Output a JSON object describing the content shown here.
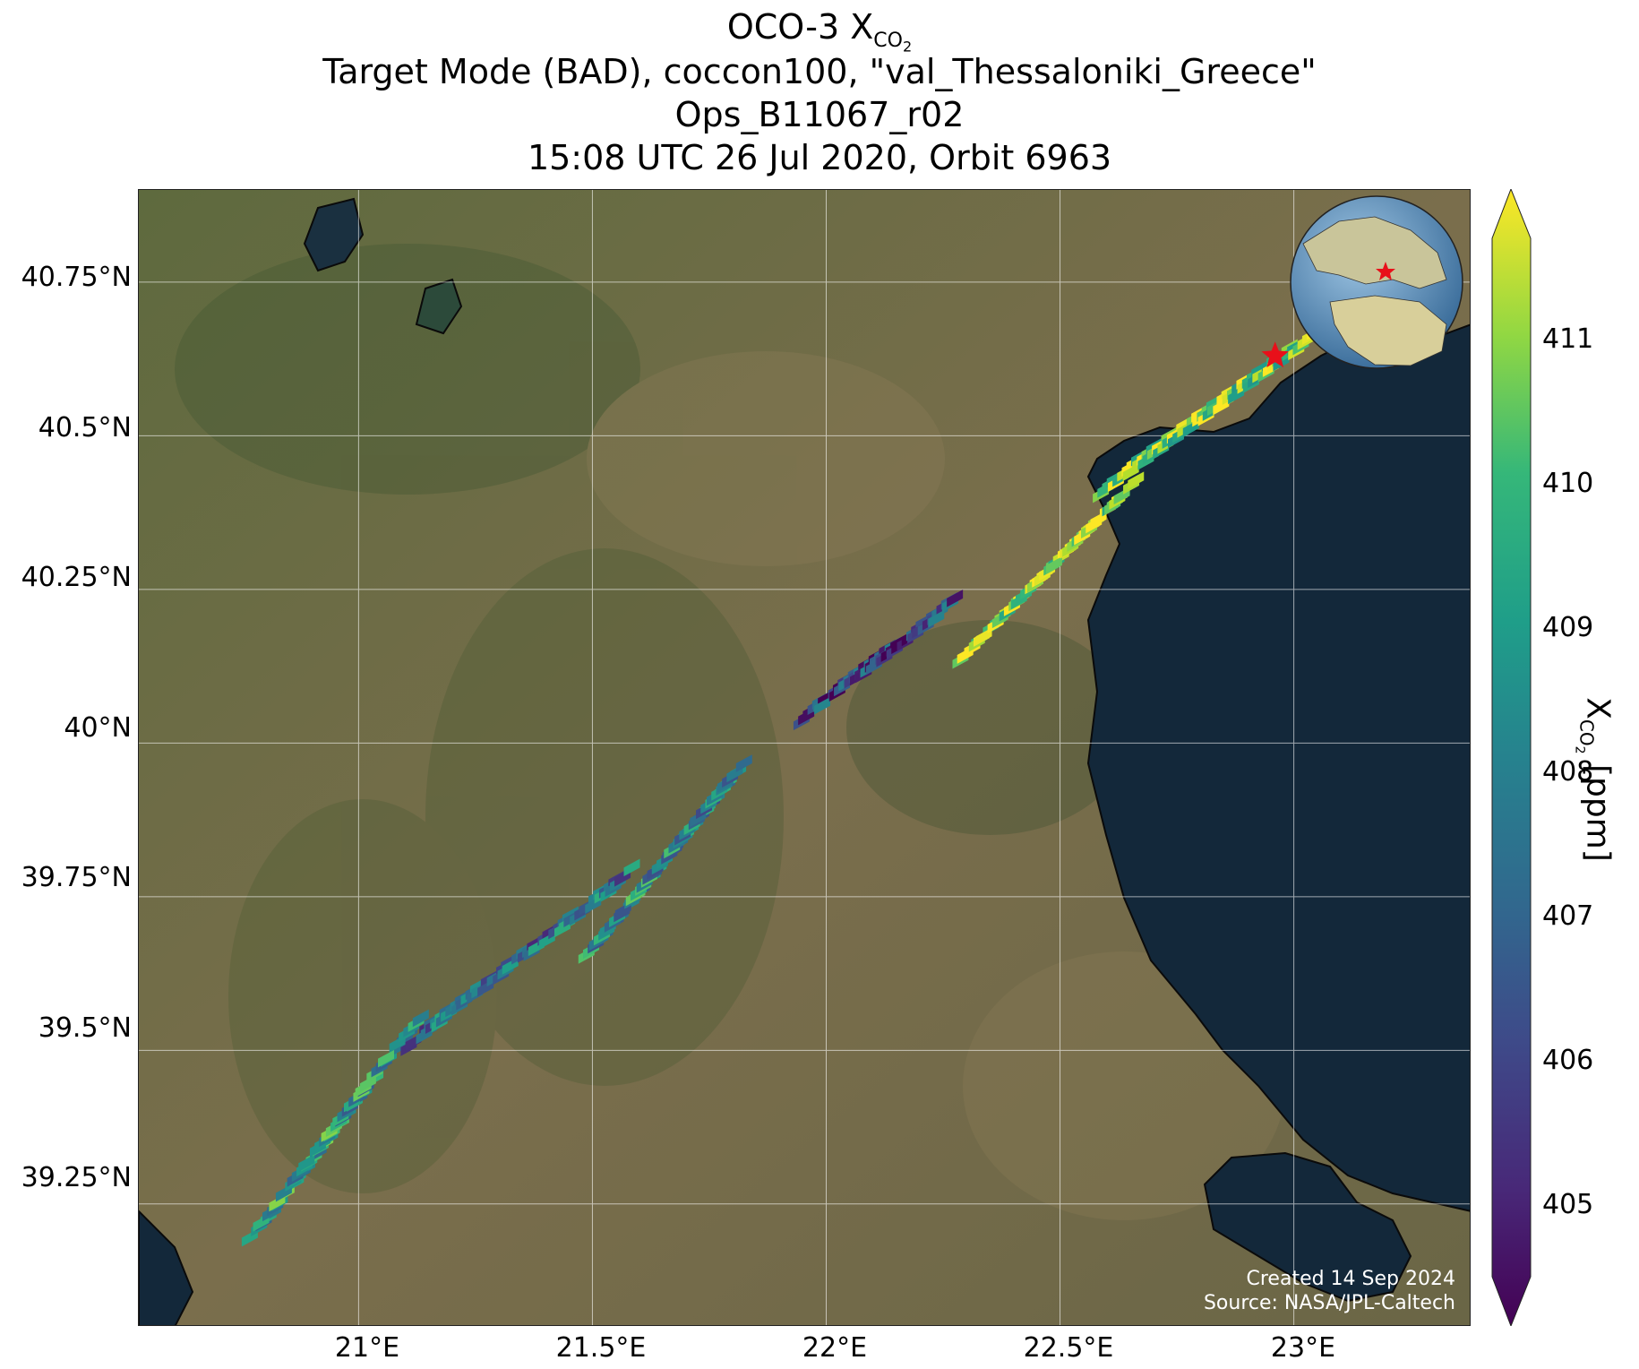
{
  "title": {
    "line1_main": "OCO-3 X",
    "line1_sub": "CO",
    "line1_sub2": "2",
    "line2": "Target Mode (BAD), coccon100, \"val_Thessaloniki_Greece\"",
    "line3": "Ops_B11067_r02",
    "line4": "15:08 UTC 26 Jul 2020, Orbit 6963"
  },
  "map": {
    "lat_ticks": [
      "40.75°N",
      "40.5°N",
      "40.25°N",
      "40°N",
      "39.75°N",
      "39.5°N",
      "39.25°N"
    ],
    "lon_ticks": [
      "21°E",
      "21.5°E",
      "22°E",
      "22.5°E",
      "23°E"
    ],
    "lon_range": [
      20.53,
      23.38
    ],
    "lat_range": [
      39.05,
      40.9
    ],
    "target": {
      "name": "val_Thessaloniki_Greece",
      "lon": 22.96,
      "lat": 40.63
    },
    "colors": {
      "sea": "#13283a",
      "land": "#6b6a48",
      "grid": "#ffffff",
      "target": "#e8101a"
    },
    "credit_line1": "Created 14 Sep 2024",
    "credit_line2": "Source: NASA/JPL-Caltech",
    "inset_globe": {
      "marker_icon": "red-star-icon",
      "region": "Europe / Africa"
    }
  },
  "colorbar": {
    "cmap": "viridis",
    "range": [
      404.5,
      411.7
    ],
    "ticks": [
      "405",
      "406",
      "407",
      "408",
      "409",
      "410",
      "411"
    ],
    "label_main": "X",
    "label_sub": "CO",
    "label_sub2": "2",
    "label_unit": " [ppm]"
  },
  "chart_data": {
    "type": "heatmap",
    "variable": "XCO2",
    "units": "ppm",
    "swaths": [
      {
        "lon_range": [
          20.78,
          21.12
        ],
        "lat_range": [
          39.24,
          39.58
        ],
        "mean_value": 408.5
      },
      {
        "lon_range": [
          21.12,
          21.58
        ],
        "lat_range": [
          39.55,
          39.82
        ],
        "mean_value": 407.2
      },
      {
        "lon_range": [
          21.5,
          21.82
        ],
        "lat_range": [
          39.7,
          40.0
        ],
        "mean_value": 408.0
      },
      {
        "lon_range": [
          21.96,
          22.27
        ],
        "lat_range": [
          40.08,
          40.26
        ],
        "mean_value": 405.8
      },
      {
        "lon_range": [
          22.3,
          22.65
        ],
        "lat_range": [
          40.18,
          40.45
        ],
        "mean_value": 410.8
      },
      {
        "lon_range": [
          22.6,
          23.05
        ],
        "lat_range": [
          40.45,
          40.7
        ],
        "mean_value": 410.2
      }
    ]
  }
}
